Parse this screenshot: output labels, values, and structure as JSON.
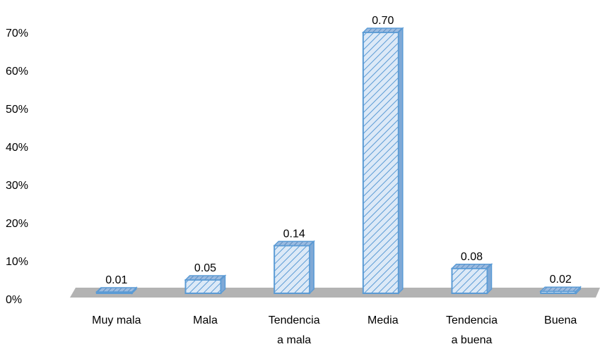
{
  "chart_data": {
    "type": "bar",
    "title": "",
    "xlabel": "",
    "ylabel": "",
    "categories": [
      [
        "Muy mala"
      ],
      [
        "Mala"
      ],
      [
        "Tendencia",
        "a mala"
      ],
      [
        "Media"
      ],
      [
        "Tendencia",
        "a buena"
      ],
      [
        "Buena"
      ]
    ],
    "values": [
      0.01,
      0.05,
      0.14,
      0.7,
      0.08,
      0.02
    ],
    "value_labels": [
      "0.01",
      "0.05",
      "0.14",
      "0.70",
      "0.08",
      "0.02"
    ],
    "y_ticks": [
      "0%",
      "10%",
      "20%",
      "30%",
      "40%",
      "50%",
      "60%",
      "70%"
    ],
    "ylim": [
      0,
      0.7
    ],
    "grid": false,
    "legend": "none",
    "colors": {
      "bar_fill": "#dce9f7",
      "bar_stroke": "#5b9bd5",
      "bar_hatch": "#5b9bd5",
      "bar_top": "#7fa9d6",
      "floor": "#b3b3b3"
    }
  }
}
